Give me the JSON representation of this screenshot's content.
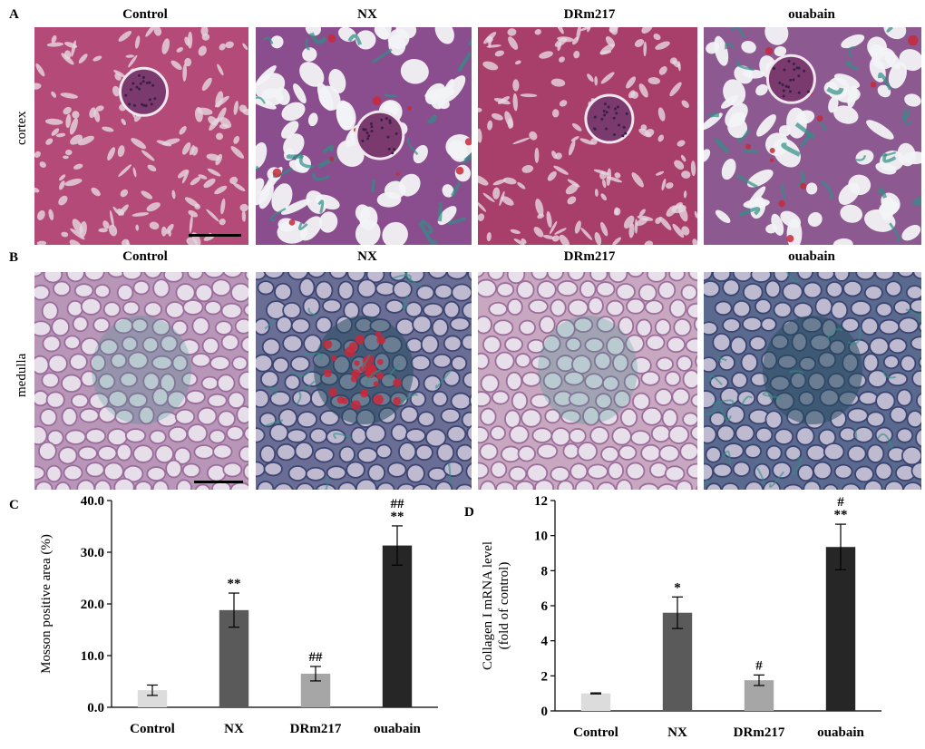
{
  "panels": {
    "A": "A",
    "B": "B",
    "C": "C",
    "D": "D"
  },
  "rows": {
    "cortex": "cortex",
    "medulla": "medulla"
  },
  "groups": [
    "Control",
    "NX",
    "DRm217",
    "ouabain"
  ],
  "stain_colors": {
    "cortex_control": "#b34a78",
    "cortex_nx": "#8a4d8e",
    "cortex_drm217": "#a83e6a",
    "cortex_ouabain": "#8c5a90",
    "medulla_control": "#b896b8",
    "medulla_nx": "#6a6e94",
    "medulla_drm217": "#c7a8c0",
    "medulla_ouabain": "#5a6a8e",
    "collagen": "#2f8f86",
    "lumen": "#eef0f4"
  },
  "chart_data": [
    {
      "type": "bar",
      "panel": "C",
      "categories": [
        "Control",
        "NX",
        "DRm217",
        "ouabain"
      ],
      "values": [
        3.3,
        18.8,
        6.5,
        31.3
      ],
      "errors": [
        1.0,
        3.3,
        1.4,
        3.8
      ],
      "annotations": [
        "",
        "**",
        "##",
        "##\n**"
      ],
      "colors": [
        "#dcdcdc",
        "#5a5a5a",
        "#a6a6a6",
        "#262626"
      ],
      "ylabel": "Mosson positive area (%)",
      "ylim": [
        0,
        40
      ],
      "yticks": [
        "0.0",
        "10.0",
        "20.0",
        "30.0",
        "40.0"
      ],
      "grid": false
    },
    {
      "type": "bar",
      "panel": "D",
      "categories": [
        "Control",
        "NX",
        "DRm217",
        "ouabain"
      ],
      "values": [
        1.0,
        5.6,
        1.75,
        9.35
      ],
      "errors": [
        0.03,
        0.9,
        0.3,
        1.3
      ],
      "annotations": [
        "",
        "*",
        "#",
        "#\n**"
      ],
      "colors": [
        "#dcdcdc",
        "#5a5a5a",
        "#a6a6a6",
        "#262626"
      ],
      "ylabel": "Collagen I mRNA level",
      "ylabel2": "(fold of control)",
      "ylim": [
        0,
        12
      ],
      "yticks": [
        "0",
        "2",
        "4",
        "6",
        "8",
        "10",
        "12"
      ],
      "grid": false
    }
  ]
}
